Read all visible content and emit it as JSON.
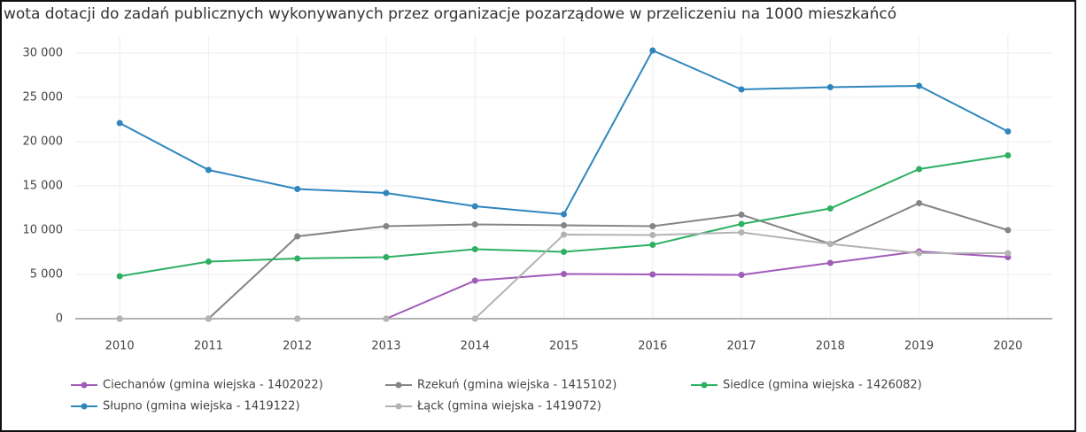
{
  "chart_data": {
    "type": "line",
    "title": "wota dotacji do zadań publicznych wykonywanych przez organizacje pozarządowe w przeliczeniu na 1000 mieszkańcó",
    "categories": [
      "2010",
      "2011",
      "2012",
      "2013",
      "2014",
      "2015",
      "2016",
      "2017",
      "2018",
      "2019",
      "2020"
    ],
    "series": [
      {
        "name": "Ciechanów (gmina wiejska - 1402022)",
        "color": "#a05cb8",
        "values": [
          0,
          0,
          0,
          0,
          4300,
          5050,
          5000,
          4950,
          6300,
          7600,
          6950
        ]
      },
      {
        "name": "Rzekuń (gmina wiejska - 1415102)",
        "color": "#858585",
        "values": [
          0,
          0,
          9300,
          10450,
          10650,
          10550,
          10450,
          11750,
          8450,
          13050,
          10000
        ]
      },
      {
        "name": "Siedlce (gmina wiejska - 1426082)",
        "color": "#2eb062",
        "values": [
          4800,
          6450,
          6800,
          6950,
          7850,
          7550,
          8350,
          10700,
          12450,
          16900,
          18450
        ]
      },
      {
        "name": "Słupno (gmina wiejska - 1419122)",
        "color": "#2f86bd",
        "values": [
          22100,
          16800,
          14650,
          14200,
          12700,
          11800,
          30300,
          25900,
          26150,
          26300,
          21150
        ]
      },
      {
        "name": "Łąck (gmina wiejska - 1419072)",
        "color": "#b3b3b3",
        "values": [
          0,
          0,
          0,
          0,
          0,
          9500,
          9450,
          9750,
          8450,
          7400,
          7400
        ]
      }
    ],
    "ylim": [
      0,
      32000
    ],
    "yticks": [
      0,
      {
        "value": 5000,
        "label": "5 000"
      },
      {
        "value": 10000,
        "label": "10 000"
      },
      {
        "value": 15000,
        "label": "15 000"
      },
      {
        "value": 20000,
        "label": "20 000"
      },
      {
        "value": 25000,
        "label": "25 000"
      },
      {
        "value": 30000,
        "label": "30 000"
      }
    ],
    "grid": true
  }
}
